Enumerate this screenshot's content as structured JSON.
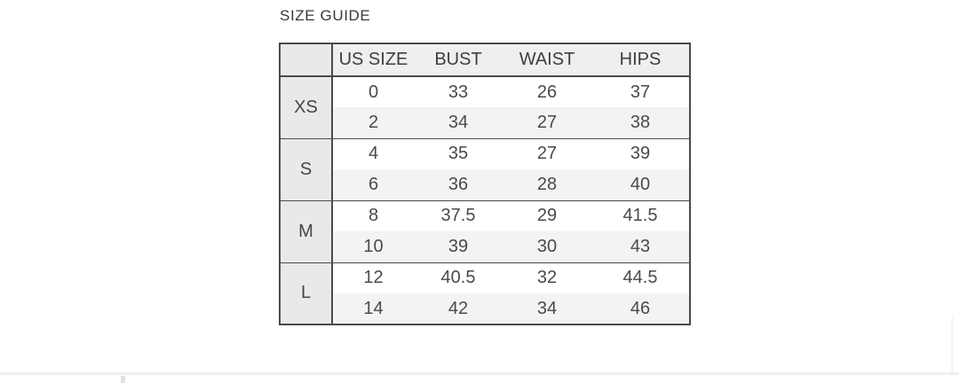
{
  "page": {
    "title": "SIZE GUIDE"
  },
  "size_guide_table": {
    "columns": [
      "",
      "US SIZE",
      "BUST",
      "WAIST",
      "HIPS"
    ],
    "groups": [
      {
        "size": "XS",
        "rows": [
          [
            "0",
            "33",
            "26",
            "37"
          ],
          [
            "2",
            "34",
            "27",
            "38"
          ]
        ]
      },
      {
        "size": "S",
        "rows": [
          [
            "4",
            "35",
            "27",
            "39"
          ],
          [
            "6",
            "36",
            "28",
            "40"
          ]
        ]
      },
      {
        "size": "M",
        "rows": [
          [
            "8",
            "37.5",
            "29",
            "41.5"
          ],
          [
            "10",
            "39",
            "30",
            "43"
          ]
        ]
      },
      {
        "size": "L",
        "rows": [
          [
            "12",
            "40.5",
            "32",
            "44.5"
          ],
          [
            "14",
            "42",
            "34",
            "46"
          ]
        ]
      }
    ]
  },
  "colors": {
    "table_border": "#4a4a4a",
    "header_bg": "#efefef",
    "label_column_bg": "#e9e9e9",
    "alt_row_bg": "#f3f3f3",
    "text": "#4a4a4a",
    "bottom_divider": "#f0f0f0"
  }
}
